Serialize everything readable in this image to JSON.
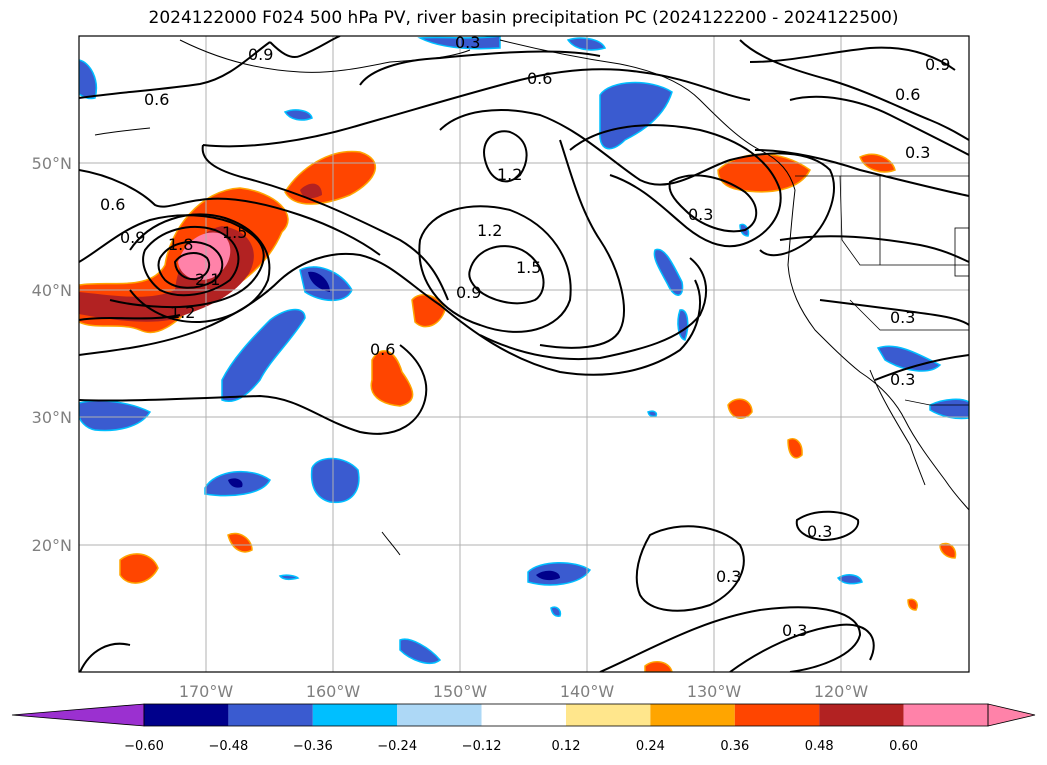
{
  "title": "2024122000 F024 500 hPa PV, river basin precipitation PC (2024122200 - 2024122500)",
  "map": {
    "lon_labels": [
      "170°W",
      "160°W",
      "150°W",
      "140°W",
      "130°W",
      "120°W"
    ],
    "lat_labels": [
      "50°N",
      "40°N",
      "30°N",
      "20°N"
    ],
    "grid": true,
    "pv_contour_labels": [
      "0.9",
      "0.6",
      "0.6",
      "0.6",
      "0.9",
      "1.8",
      "1.5",
      "2.1",
      "1.2",
      "1.2",
      "1.2",
      "1.5",
      "0.9",
      "0.6",
      "0.3",
      "0.9",
      "0.6",
      "0.3",
      "0.3",
      "0.3",
      "0.3",
      "0.3",
      "0.3",
      "0.3"
    ]
  },
  "colorbar": {
    "ticks": [
      "−0.60",
      "−0.48",
      "−0.36",
      "−0.24",
      "−0.12",
      "0.12",
      "0.24",
      "0.36",
      "0.48",
      "0.60"
    ],
    "colors": [
      "#9b30d0",
      "#00008b",
      "#3a5bd0",
      "#00bfff",
      "#add8f6",
      "#ffffff",
      "#ffe68c",
      "#ffa500",
      "#ff4500",
      "#b22222",
      "#ff82a9",
      "#ff82a9"
    ]
  },
  "palette": {
    "dark_blue": "#00008b",
    "blue": "#3a5bd0",
    "sky": "#00bfff",
    "light_blue": "#add8f6",
    "yellow": "#ffe68c",
    "orange": "#ffa500",
    "red_orange": "#ff4500",
    "dark_red": "#b22222",
    "pink": "#ff82a9"
  }
}
